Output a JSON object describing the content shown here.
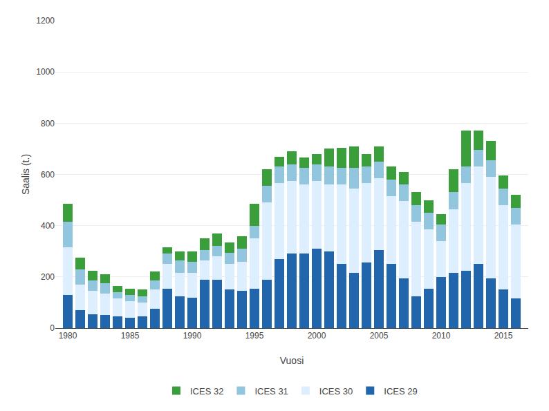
{
  "chart_data": {
    "type": "bar",
    "stacked": true,
    "xlabel": "Vuosi",
    "ylabel": "Saalis (t.)",
    "x": [
      1980,
      1981,
      1982,
      1983,
      1984,
      1985,
      1986,
      1987,
      1988,
      1989,
      1990,
      1991,
      1992,
      1993,
      1994,
      1995,
      1996,
      1997,
      1998,
      1999,
      2000,
      2001,
      2002,
      2003,
      2004,
      2005,
      2006,
      2007,
      2008,
      2009,
      2010,
      2011,
      2012,
      2013,
      2014,
      2015,
      2016
    ],
    "series": [
      {
        "name": "ICES 29",
        "color": "#2166ac",
        "values": [
          130,
          70,
          55,
          50,
          45,
          40,
          45,
          75,
          155,
          125,
          120,
          190,
          190,
          150,
          145,
          155,
          190,
          270,
          290,
          290,
          310,
          300,
          250,
          215,
          255,
          305,
          250,
          195,
          125,
          155,
          200,
          215,
          225,
          250,
          195,
          150,
          115
        ]
      },
      {
        "name": "ICES 30",
        "color": "#ddeeff",
        "values": [
          185,
          100,
          90,
          85,
          70,
          65,
          55,
          75,
          95,
          90,
          95,
          75,
          90,
          100,
          115,
          195,
          300,
          295,
          285,
          270,
          265,
          260,
          310,
          330,
          310,
          280,
          265,
          300,
          290,
          230,
          140,
          250,
          340,
          380,
          395,
          330,
          290
        ]
      },
      {
        "name": "ICES 31",
        "color": "#92c5de",
        "values": [
          100,
          60,
          40,
          40,
          25,
          25,
          25,
          35,
          40,
          50,
          45,
          40,
          40,
          45,
          50,
          50,
          65,
          65,
          65,
          65,
          65,
          70,
          65,
          80,
          65,
          65,
          65,
          65,
          65,
          65,
          65,
          65,
          65,
          65,
          65,
          65,
          65
        ]
      },
      {
        "name": "ICES 32",
        "color": "#3a9e3a",
        "values": [
          70,
          45,
          40,
          35,
          25,
          25,
          25,
          35,
          25,
          35,
          40,
          45,
          50,
          40,
          50,
          85,
          65,
          40,
          50,
          40,
          40,
          70,
          80,
          85,
          50,
          60,
          50,
          50,
          50,
          50,
          40,
          90,
          140,
          75,
          75,
          50,
          50
        ]
      }
    ],
    "xlim": [
      1979.0,
      2017.0
    ],
    "xticks": [
      1980,
      1985,
      1990,
      1995,
      2000,
      2005,
      2010,
      2015
    ],
    "ylim": [
      0,
      1200
    ],
    "yticks": [
      0,
      200,
      400,
      600,
      800,
      1000,
      1200
    ],
    "grid": "y",
    "legend": "bottom"
  }
}
